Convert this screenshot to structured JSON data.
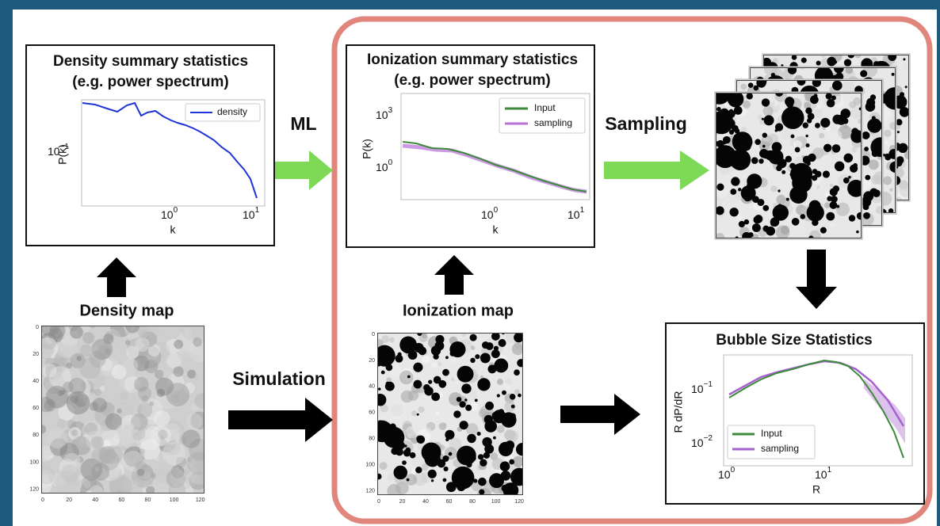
{
  "density_stats": {
    "title": [
      "Density summary statistics",
      "(e.g. power spectrum)"
    ],
    "y_label": "P(k)",
    "x_label": "k",
    "y_ticks": [
      {
        "base": "10",
        "exponent": "−1"
      }
    ],
    "x_ticks": [
      {
        "base": "10",
        "exponent": "0"
      },
      {
        "base": "10",
        "exponent": "1"
      }
    ],
    "legend": [
      "density"
    ]
  },
  "ionization_stats": {
    "title": [
      "Ionization summary statistics",
      "(e.g. power spectrum)"
    ],
    "y_label": "P(k)",
    "x_label": "k",
    "y_ticks": [
      {
        "base": "10",
        "exponent": "3"
      },
      {
        "base": "10",
        "exponent": "0"
      }
    ],
    "x_ticks": [
      {
        "base": "10",
        "exponent": "0"
      },
      {
        "base": "10",
        "exponent": "1"
      }
    ],
    "legend": [
      "Input",
      "sampling"
    ]
  },
  "bubble_stats": {
    "title": "Bubble Size Statistics",
    "y_label": "R dP/dR",
    "x_label": "R",
    "y_ticks": [
      {
        "base": "10",
        "exponent": "−1"
      },
      {
        "base": "10",
        "exponent": "−2"
      }
    ],
    "x_ticks": [
      {
        "base": "10",
        "exponent": "0"
      },
      {
        "base": "10",
        "exponent": "1"
      }
    ],
    "legend": [
      "Input",
      "sampling"
    ]
  },
  "arrows": {
    "ml": "ML",
    "sampling": "Sampling",
    "simulation": "Simulation"
  },
  "density_map": {
    "label": "Density map",
    "x_ticks": [
      "0",
      "20",
      "40",
      "60",
      "80",
      "100",
      "120"
    ],
    "y_ticks": [
      "0",
      "20",
      "40",
      "60",
      "80",
      "100",
      "120"
    ]
  },
  "ionization_map": {
    "label": "Ionization map",
    "x_ticks": [
      "0",
      "20",
      "40",
      "60",
      "80",
      "100",
      "120"
    ],
    "y_ticks": [
      "0",
      "20",
      "40",
      "60",
      "80",
      "100",
      "120"
    ]
  }
}
